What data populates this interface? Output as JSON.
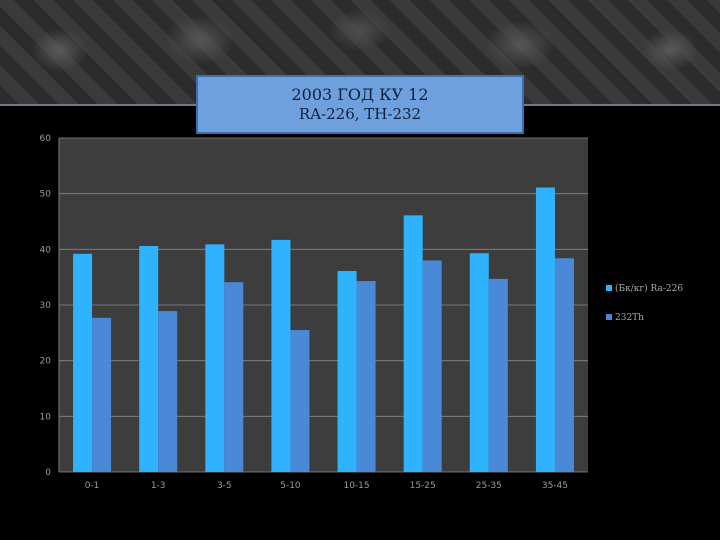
{
  "title": {
    "line1": "2003 ГОД КУ 12",
    "line2": "RA-226, TH-232"
  },
  "colors": {
    "series1": "#2fb3ff",
    "series2": "#4a88d8",
    "plot_bg": "#3d3d3d",
    "gridline": "#8a8a8a",
    "background": "#000000"
  },
  "chart_data": {
    "type": "bar",
    "title": "2003 ГОД КУ 12 RA-226, TH-232",
    "categories": [
      "0-1",
      "1-3",
      "3-5",
      "5-10",
      "10-15",
      "15-25",
      "25-35",
      "35-45"
    ],
    "series": [
      {
        "name": "(Бк/кг) Ra-226",
        "values": [
          39.2,
          40.6,
          40.9,
          41.7,
          36.1,
          46.1,
          39.3,
          51.1
        ]
      },
      {
        "name": "232Th",
        "values": [
          27.7,
          28.9,
          34.1,
          25.5,
          34.3,
          38.0,
          34.7,
          38.4
        ]
      }
    ],
    "ylim": [
      0,
      60
    ],
    "yticks": [
      0,
      10,
      20,
      30,
      40,
      50,
      60
    ],
    "xlabel": "",
    "ylabel": "",
    "grid": true,
    "legend": "right"
  }
}
